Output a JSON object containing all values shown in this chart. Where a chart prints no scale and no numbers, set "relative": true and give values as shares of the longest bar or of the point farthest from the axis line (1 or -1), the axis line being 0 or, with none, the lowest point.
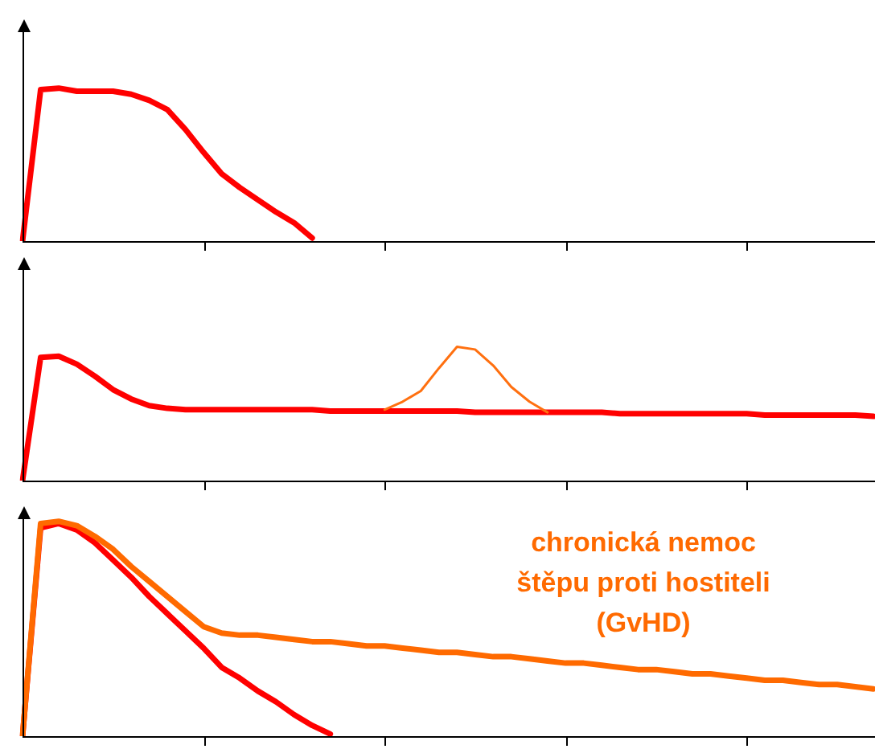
{
  "chart_data": [
    {
      "type": "line",
      "relative": true,
      "marker": "none",
      "categories": [
        null,
        null,
        null,
        null,
        null,
        null,
        null,
        null,
        null,
        null,
        null,
        null,
        null,
        null,
        null,
        null,
        null,
        null,
        null,
        null,
        null,
        null,
        null,
        null,
        null,
        null,
        null,
        null,
        null,
        null,
        null,
        null,
        null,
        null,
        null,
        null,
        null,
        null,
        null,
        null,
        null,
        null,
        null,
        null,
        null,
        null,
        null,
        null
      ],
      "series": [
        {
          "color": "#ff0000",
          "values": [
            0,
            0.99,
            1,
            0.98,
            0.98,
            0.98,
            0.96,
            0.92,
            0.86,
            0.73,
            0.58,
            0.44,
            0.35,
            0.27,
            0.19,
            0.12,
            0.02,
            null,
            null,
            null,
            null,
            null,
            null,
            null,
            null,
            null,
            null,
            null,
            null,
            null,
            null,
            null,
            null,
            null,
            null,
            null,
            null,
            null,
            null,
            null,
            null,
            null,
            null,
            null,
            null,
            null,
            null,
            null
          ]
        }
      ]
    },
    {
      "type": "line",
      "relative": true,
      "marker": "none",
      "categories": [
        null,
        null,
        null,
        null,
        null,
        null,
        null,
        null,
        null,
        null,
        null,
        null,
        null,
        null,
        null,
        null,
        null,
        null,
        null,
        null,
        null,
        null,
        null,
        null,
        null,
        null,
        null,
        null,
        null,
        null,
        null,
        null,
        null,
        null,
        null,
        null,
        null,
        null,
        null,
        null,
        null,
        null,
        null,
        null,
        null,
        null,
        null,
        null
      ],
      "series": [
        {
          "color": "#ff0000",
          "values": [
            0,
            0.92,
            0.93,
            0.87,
            0.78,
            0.68,
            0.61,
            0.56,
            0.54,
            0.53,
            0.53,
            0.53,
            0.53,
            0.53,
            0.53,
            0.53,
            0.53,
            0.52,
            0.52,
            0.52,
            0.52,
            0.52,
            0.52,
            0.52,
            0.52,
            0.51,
            0.51,
            0.51,
            0.51,
            0.51,
            0.51,
            0.51,
            0.51,
            0.5,
            0.5,
            0.5,
            0.5,
            0.5,
            0.5,
            0.5,
            0.5,
            0.49,
            0.49,
            0.49,
            0.49,
            0.49,
            0.49,
            0.48
          ]
        },
        {
          "color": "#ff7010",
          "values": [
            null,
            null,
            null,
            null,
            null,
            null,
            null,
            null,
            null,
            null,
            null,
            null,
            null,
            null,
            null,
            null,
            null,
            null,
            null,
            null,
            0.53,
            0.59,
            0.67,
            0.84,
            1,
            0.98,
            0.86,
            0.7,
            0.59,
            0.51,
            null,
            null,
            null,
            null,
            null,
            null,
            null,
            null,
            null,
            null,
            null,
            null,
            null,
            null,
            null,
            null,
            null,
            null
          ]
        }
      ]
    },
    {
      "type": "line",
      "relative": true,
      "marker": "none",
      "categories": [
        null,
        null,
        null,
        null,
        null,
        null,
        null,
        null,
        null,
        null,
        null,
        null,
        null,
        null,
        null,
        null,
        null,
        null,
        null,
        null,
        null,
        null,
        null,
        null,
        null,
        null,
        null,
        null,
        null,
        null,
        null,
        null,
        null,
        null,
        null,
        null,
        null,
        null,
        null,
        null,
        null,
        null,
        null,
        null,
        null,
        null,
        null,
        null
      ],
      "series": [
        {
          "color": "#ff0000",
          "values": [
            0,
            0.97,
            0.99,
            0.96,
            0.9,
            0.82,
            0.74,
            0.65,
            0.57,
            0.49,
            0.41,
            0.32,
            0.27,
            0.21,
            0.16,
            0.1,
            0.05,
            0.01,
            null,
            null,
            null,
            null,
            null,
            null,
            null,
            null,
            null,
            null,
            null,
            null,
            null,
            null,
            null,
            null,
            null,
            null,
            null,
            null,
            null,
            null,
            null,
            null,
            null,
            null,
            null,
            null,
            null,
            null
          ]
        },
        {
          "name": "chronická nemoc štěpu proti hostiteli (GvHD)",
          "color": "#ff6a00",
          "values": [
            0,
            0.99,
            1,
            0.98,
            0.93,
            0.87,
            0.79,
            0.72,
            0.65,
            0.58,
            0.51,
            0.48,
            0.47,
            0.47,
            0.46,
            0.45,
            0.44,
            0.44,
            0.43,
            0.42,
            0.42,
            0.41,
            0.4,
            0.39,
            0.39,
            0.38,
            0.37,
            0.37,
            0.36,
            0.35,
            0.34,
            0.34,
            0.33,
            0.32,
            0.31,
            0.31,
            0.3,
            0.29,
            0.29,
            0.28,
            0.27,
            0.26,
            0.26,
            0.25,
            0.24,
            0.24,
            0.23,
            0.22
          ]
        }
      ]
    }
  ]
}
